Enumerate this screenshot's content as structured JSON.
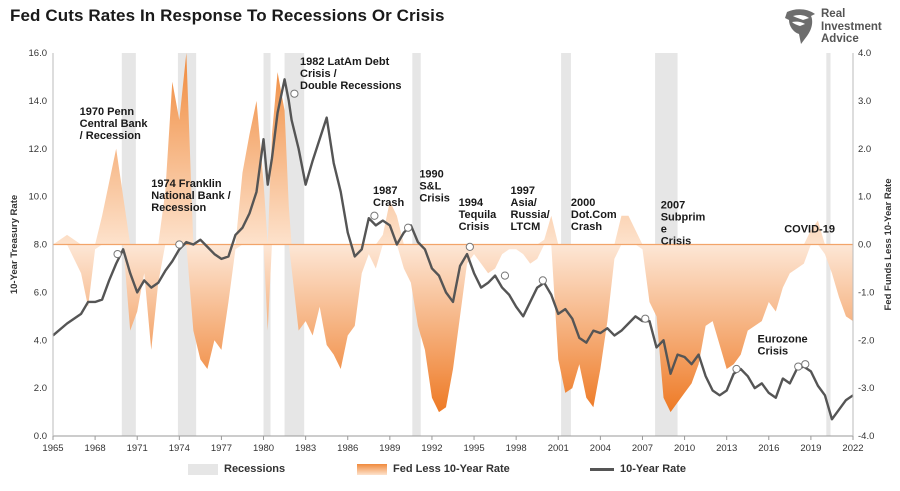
{
  "title": "Fed Cuts Rates In Response To Recessions Or Crisis",
  "brand": {
    "line1": "Real",
    "line2": "Investment",
    "line3": "Advice"
  },
  "colors": {
    "fill": "#f08a3c",
    "line": "#555555",
    "recession": "#e6e6e6",
    "zeroLine": "#f2a46a"
  },
  "legend": {
    "recessions": "Recessions",
    "spread": "Fed Less 10-Year Rate",
    "rate": "10-Year Rate"
  },
  "chart_data": {
    "type": "line",
    "xlabel": "",
    "ylabel": "10-Year Treasury Rate",
    "y2label": "Fed Funds Less 10-Year Rate",
    "xlim": [
      1965,
      2022
    ],
    "ylim": [
      0,
      16
    ],
    "y2lim": [
      -4,
      4
    ],
    "x_ticks": [
      "1965",
      "1968",
      "1971",
      "1974",
      "1977",
      "1980",
      "1983",
      "1986",
      "1989",
      "1992",
      "1995",
      "1998",
      "2001",
      "2004",
      "2007",
      "2010",
      "2013",
      "2016",
      "2019",
      "2022"
    ],
    "y_ticks": [
      "0.0",
      "2.0",
      "4.0",
      "6.0",
      "8.0",
      "10.0",
      "12.0",
      "14.0",
      "16.0"
    ],
    "y2_ticks": [
      "-4.0",
      "-3.0",
      "-2.0",
      "-1.0",
      "0.0",
      "1.0",
      "2.0",
      "3.0",
      "4.0"
    ],
    "recessions": [
      [
        1969.9,
        1970.9
      ],
      [
        1973.9,
        1975.2
      ],
      [
        1980.0,
        1980.5
      ],
      [
        1981.5,
        1982.9
      ],
      [
        1990.6,
        1991.2
      ],
      [
        2001.2,
        2001.9
      ],
      [
        2007.9,
        2009.5
      ],
      [
        2020.1,
        2020.4
      ]
    ],
    "series": [
      {
        "name": "10-Year Rate",
        "x": [
          1965,
          1966,
          1967,
          1967.5,
          1968,
          1968.5,
          1969,
          1969.5,
          1970,
          1970.5,
          1971,
          1971.5,
          1972,
          1972.5,
          1973,
          1973.5,
          1974,
          1974.5,
          1975,
          1975.5,
          1976,
          1976.5,
          1977,
          1977.5,
          1978,
          1978.5,
          1979,
          1979.5,
          1980,
          1980.3,
          1980.6,
          1981,
          1981.5,
          1981.8,
          1982,
          1982.5,
          1983,
          1983.5,
          1984,
          1984.5,
          1985,
          1985.5,
          1986,
          1986.5,
          1987,
          1987.5,
          1988,
          1988.5,
          1989,
          1989.5,
          1990,
          1990.5,
          1991,
          1991.5,
          1992,
          1992.5,
          1993,
          1993.5,
          1994,
          1994.5,
          1995,
          1995.5,
          1996,
          1996.5,
          1997,
          1997.5,
          1998,
          1998.5,
          1999,
          1999.5,
          2000,
          2000.5,
          2001,
          2001.5,
          2002,
          2002.5,
          2003,
          2003.5,
          2004,
          2004.5,
          2005,
          2005.5,
          2006,
          2006.5,
          2007,
          2007.5,
          2008,
          2008.5,
          2009,
          2009.5,
          2010,
          2010.5,
          2011,
          2011.5,
          2012,
          2012.5,
          2013,
          2013.5,
          2014,
          2014.5,
          2015,
          2015.5,
          2016,
          2016.5,
          2017,
          2017.5,
          2018,
          2018.5,
          2019,
          2019.5,
          2020,
          2020.5,
          2021,
          2021.5,
          2022
        ],
        "values": [
          4.2,
          4.7,
          5.1,
          5.6,
          5.6,
          5.7,
          6.5,
          7.2,
          7.8,
          6.8,
          6.0,
          6.5,
          6.2,
          6.4,
          6.9,
          7.3,
          7.8,
          8.1,
          8.0,
          8.2,
          7.9,
          7.6,
          7.4,
          7.5,
          8.4,
          8.7,
          9.3,
          10.2,
          12.4,
          10.5,
          11.6,
          13.5,
          14.9,
          14.0,
          13.2,
          12.0,
          10.5,
          11.5,
          12.4,
          13.3,
          11.4,
          10.2,
          8.5,
          7.5,
          7.8,
          9.1,
          8.8,
          9.0,
          8.8,
          8.0,
          8.5,
          8.8,
          8.1,
          7.8,
          7.0,
          6.7,
          6.0,
          5.6,
          7.1,
          7.6,
          6.8,
          6.2,
          6.4,
          6.7,
          6.2,
          5.9,
          5.4,
          5.0,
          5.6,
          6.2,
          6.4,
          5.9,
          5.1,
          5.3,
          4.9,
          4.1,
          3.9,
          4.4,
          4.3,
          4.5,
          4.2,
          4.4,
          4.7,
          5.0,
          4.8,
          4.8,
          3.7,
          4.0,
          2.6,
          3.4,
          3.3,
          3.0,
          3.4,
          2.5,
          1.9,
          1.7,
          1.9,
          2.6,
          2.8,
          2.5,
          2.0,
          2.2,
          1.8,
          1.6,
          2.4,
          2.2,
          2.8,
          2.9,
          2.7,
          2.1,
          1.7,
          0.7,
          1.1,
          1.5,
          1.7
        ]
      },
      {
        "name": "Fed Less 10-Year Rate",
        "x": [
          1965,
          1966,
          1967,
          1967.5,
          1968,
          1968.5,
          1969,
          1969.5,
          1970,
          1970.5,
          1971,
          1971.5,
          1972,
          1972.5,
          1973,
          1973.5,
          1974,
          1974.5,
          1975,
          1975.5,
          1976,
          1976.5,
          1977,
          1977.5,
          1978,
          1978.5,
          1979,
          1979.5,
          1980,
          1980.3,
          1980.6,
          1981,
          1981.5,
          1981.8,
          1982,
          1982.5,
          1983,
          1983.5,
          1984,
          1984.5,
          1985,
          1985.5,
          1986,
          1986.5,
          1987,
          1987.5,
          1988,
          1988.5,
          1989,
          1989.5,
          1990,
          1990.5,
          1991,
          1991.5,
          1992,
          1992.5,
          1993,
          1993.5,
          1994,
          1994.5,
          1995,
          1995.5,
          1996,
          1996.5,
          1997,
          1997.5,
          1998,
          1998.5,
          1999,
          1999.5,
          2000,
          2000.5,
          2001,
          2001.5,
          2002,
          2002.5,
          2003,
          2003.5,
          2004,
          2004.5,
          2005,
          2005.5,
          2006,
          2006.5,
          2007,
          2007.5,
          2008,
          2008.5,
          2009,
          2009.5,
          2010,
          2010.5,
          2011,
          2011.5,
          2012,
          2012.5,
          2013,
          2013.5,
          2014,
          2014.5,
          2015,
          2015.5,
          2016,
          2016.5,
          2017,
          2017.5,
          2018,
          2018.5,
          2019,
          2019.5,
          2020,
          2020.5,
          2021,
          2021.5,
          2022
        ],
        "values": [
          0.0,
          0.2,
          -0.6,
          -1.3,
          -0.1,
          0.6,
          1.3,
          2.0,
          1.0,
          -1.8,
          -1.4,
          -0.6,
          -2.2,
          -0.8,
          1.1,
          3.4,
          2.6,
          4.0,
          -1.8,
          -2.4,
          -2.6,
          -2.0,
          -2.2,
          -1.2,
          -0.1,
          1.5,
          2.3,
          3.0,
          1.3,
          -1.8,
          2.3,
          3.6,
          2.8,
          0.8,
          -0.5,
          -1.8,
          -1.6,
          -1.9,
          -1.3,
          -2.1,
          -2.3,
          -2.6,
          -1.9,
          -1.7,
          -0.6,
          -0.2,
          -0.5,
          0.2,
          0.9,
          0.6,
          -0.5,
          -0.8,
          -1.7,
          -2.2,
          -3.2,
          -3.5,
          -3.4,
          -2.6,
          -1.5,
          -0.4,
          -0.2,
          -0.4,
          -0.6,
          -0.5,
          -0.2,
          -0.1,
          -0.1,
          -0.2,
          -0.4,
          -0.3,
          0.1,
          0.6,
          -2.4,
          -3.1,
          -3.0,
          -2.5,
          -3.2,
          -3.4,
          -2.6,
          -1.6,
          -0.3,
          0.6,
          0.6,
          0.3,
          -0.1,
          -1.2,
          -1.5,
          -3.2,
          -3.5,
          -3.3,
          -3.1,
          -2.9,
          -2.5,
          -1.7,
          -1.6,
          -2.1,
          -2.6,
          -2.5,
          -2.3,
          -1.8,
          -1.7,
          -1.6,
          -1.2,
          -1.4,
          -0.9,
          -0.6,
          -0.5,
          -0.4,
          0.3,
          0.5,
          -0.2,
          -0.6,
          -1.1,
          -1.5,
          -1.6
        ]
      }
    ],
    "markers": [
      {
        "x": 1969.6,
        "y": 7.6
      },
      {
        "x": 1974.0,
        "y": 8.0
      },
      {
        "x": 1982.2,
        "y": 14.3
      },
      {
        "x": 1987.9,
        "y": 9.2
      },
      {
        "x": 1990.3,
        "y": 8.7
      },
      {
        "x": 1994.7,
        "y": 7.9
      },
      {
        "x": 1997.2,
        "y": 6.7
      },
      {
        "x": 1999.9,
        "y": 6.5
      },
      {
        "x": 2007.2,
        "y": 4.9
      },
      {
        "x": 2013.7,
        "y": 2.8
      },
      {
        "x": 2018.1,
        "y": 2.9
      },
      {
        "x": 2018.6,
        "y": 3.0
      }
    ],
    "annotations": [
      {
        "lines": [
          "1970 Penn",
          "Central Bank",
          "/ Recession"
        ],
        "x": 1966.9,
        "y": 13.4
      },
      {
        "lines": [
          "1974 Franklin",
          "National Bank /",
          "Recession"
        ],
        "x": 1972.0,
        "y": 10.4
      },
      {
        "lines": [
          "1982 LatAm Debt",
          "Crisis /",
          "Double Recessions"
        ],
        "x": 1982.6,
        "y": 15.5
      },
      {
        "lines": [
          "1987",
          "Crash"
        ],
        "x": 1987.8,
        "y": 10.1
      },
      {
        "lines": [
          "1990",
          "S&L",
          "Crisis"
        ],
        "x": 1991.1,
        "y": 10.8
      },
      {
        "lines": [
          "1994",
          "Tequila",
          "Crisis"
        ],
        "x": 1993.9,
        "y": 9.6
      },
      {
        "lines": [
          "1997",
          "Asia/",
          "Russia/",
          "LTCM"
        ],
        "x": 1997.6,
        "y": 10.1
      },
      {
        "lines": [
          "2000",
          "Dot.Com",
          "Crash"
        ],
        "x": 2001.9,
        "y": 9.6
      },
      {
        "lines": [
          "2007",
          "Subprim",
          "e",
          "Crisis"
        ],
        "x": 2008.3,
        "y": 9.5
      },
      {
        "lines": [
          "COVID-19"
        ],
        "x": 2017.1,
        "y": 8.5
      },
      {
        "lines": [
          "Eurozone",
          "Crisis"
        ],
        "x": 2015.2,
        "y": 3.9
      }
    ]
  }
}
